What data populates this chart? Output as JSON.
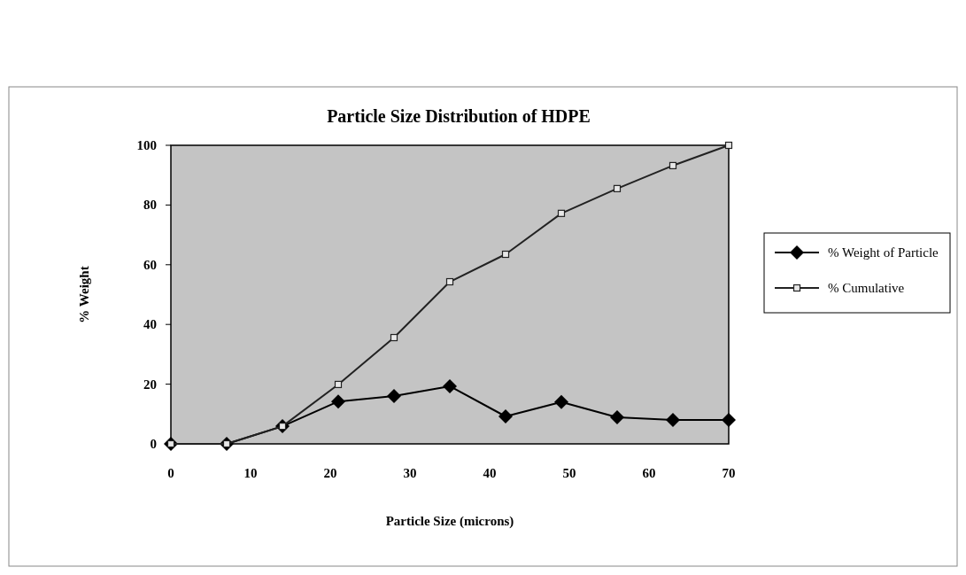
{
  "chart_data": {
    "type": "line",
    "title": "Particle Size Distribution of HDPE",
    "xlabel": "Particle Size (microns)",
    "ylabel": "% Weight",
    "x": [
      0,
      7,
      14,
      21,
      28,
      35,
      42,
      49,
      56,
      63,
      70
    ],
    "series": [
      {
        "name": "% Weight of Particle",
        "color": "#000000",
        "marker": "diamond",
        "values": [
          0,
          0,
          5.9,
          14.2,
          16,
          19.3,
          9.2,
          14,
          8.9,
          8,
          8
        ]
      },
      {
        "name": "% Cumulative",
        "color": "#222222",
        "marker": "square",
        "values": [
          0,
          0,
          5.9,
          19.9,
          35.6,
          54.3,
          63.5,
          77.2,
          85.5,
          93.2,
          100
        ]
      }
    ],
    "xlim": [
      0,
      70
    ],
    "xticks": [
      0,
      10,
      20,
      30,
      40,
      50,
      60,
      70
    ],
    "ylim": [
      0,
      100
    ],
    "yticks": [
      0,
      20,
      40,
      60,
      80,
      100
    ],
    "grid": false,
    "legend": "right"
  }
}
